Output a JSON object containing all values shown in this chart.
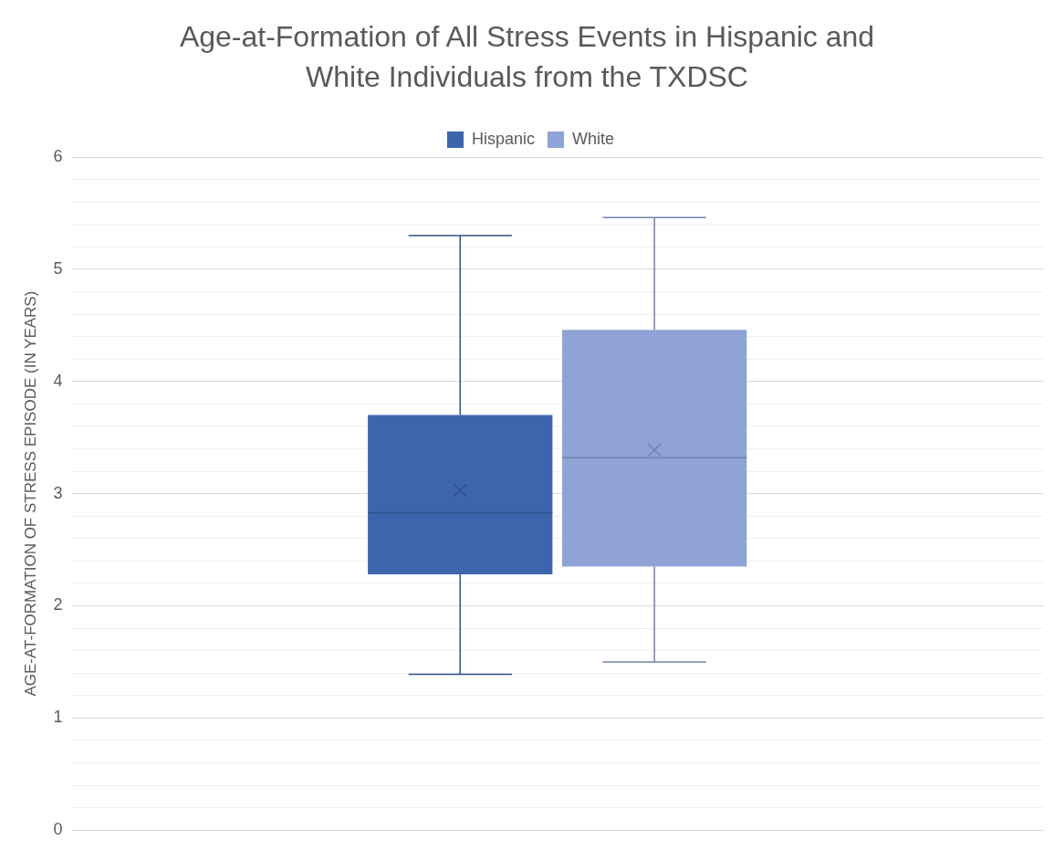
{
  "chart_data": {
    "type": "box",
    "title": "Age-at-Formation of All Stress Events in Hispanic and White Individuals from the TXDSC",
    "ylabel": "AGE-AT-FORMATION OF STRESS EPISODE (IN YEARS)",
    "categories": [
      null
    ],
    "series": [
      {
        "name": "Hispanic",
        "color": "#3d65ae",
        "boxes": [
          {
            "low": 1.39,
            "q1": 2.28,
            "median": 2.83,
            "q3": 3.7,
            "high": 5.3,
            "mean": 3.03
          }
        ]
      },
      {
        "name": "White",
        "color": "#8fa3d6",
        "boxes": [
          {
            "low": 1.5,
            "q1": 2.35,
            "median": 3.32,
            "q3": 4.46,
            "high": 5.46,
            "mean": 3.39
          }
        ]
      }
    ],
    "ylim": [
      0,
      6
    ],
    "yticks": [
      0,
      {
        "value": 0.2,
        "label": null
      },
      {
        "value": 0.4,
        "label": null
      },
      {
        "value": 0.6,
        "label": null
      },
      {
        "value": 0.8,
        "label": null
      },
      1,
      {
        "value": 1.2,
        "label": null
      },
      {
        "value": 1.4,
        "label": null
      },
      {
        "value": 1.6,
        "label": null
      },
      {
        "value": 1.8,
        "label": null
      },
      2,
      {
        "value": 2.2,
        "label": null
      },
      {
        "value": 2.4,
        "label": null
      },
      {
        "value": 2.6,
        "label": null
      },
      {
        "value": 2.8,
        "label": null
      },
      3,
      {
        "value": 3.2,
        "label": null
      },
      {
        "value": 3.4,
        "label": null
      },
      {
        "value": 3.6,
        "label": null
      },
      {
        "value": 3.8,
        "label": null
      },
      4,
      {
        "value": 4.2,
        "label": null
      },
      {
        "value": 4.4,
        "label": null
      },
      {
        "value": 4.6,
        "label": null
      },
      {
        "value": 4.8,
        "label": null
      },
      5,
      {
        "value": 5.2,
        "label": null
      },
      {
        "value": 5.4,
        "label": null
      },
      {
        "value": 5.6,
        "label": null
      },
      {
        "value": 5.8,
        "label": null
      },
      6
    ],
    "grid": "y",
    "legend": "top",
    "tick_labels": "y"
  }
}
